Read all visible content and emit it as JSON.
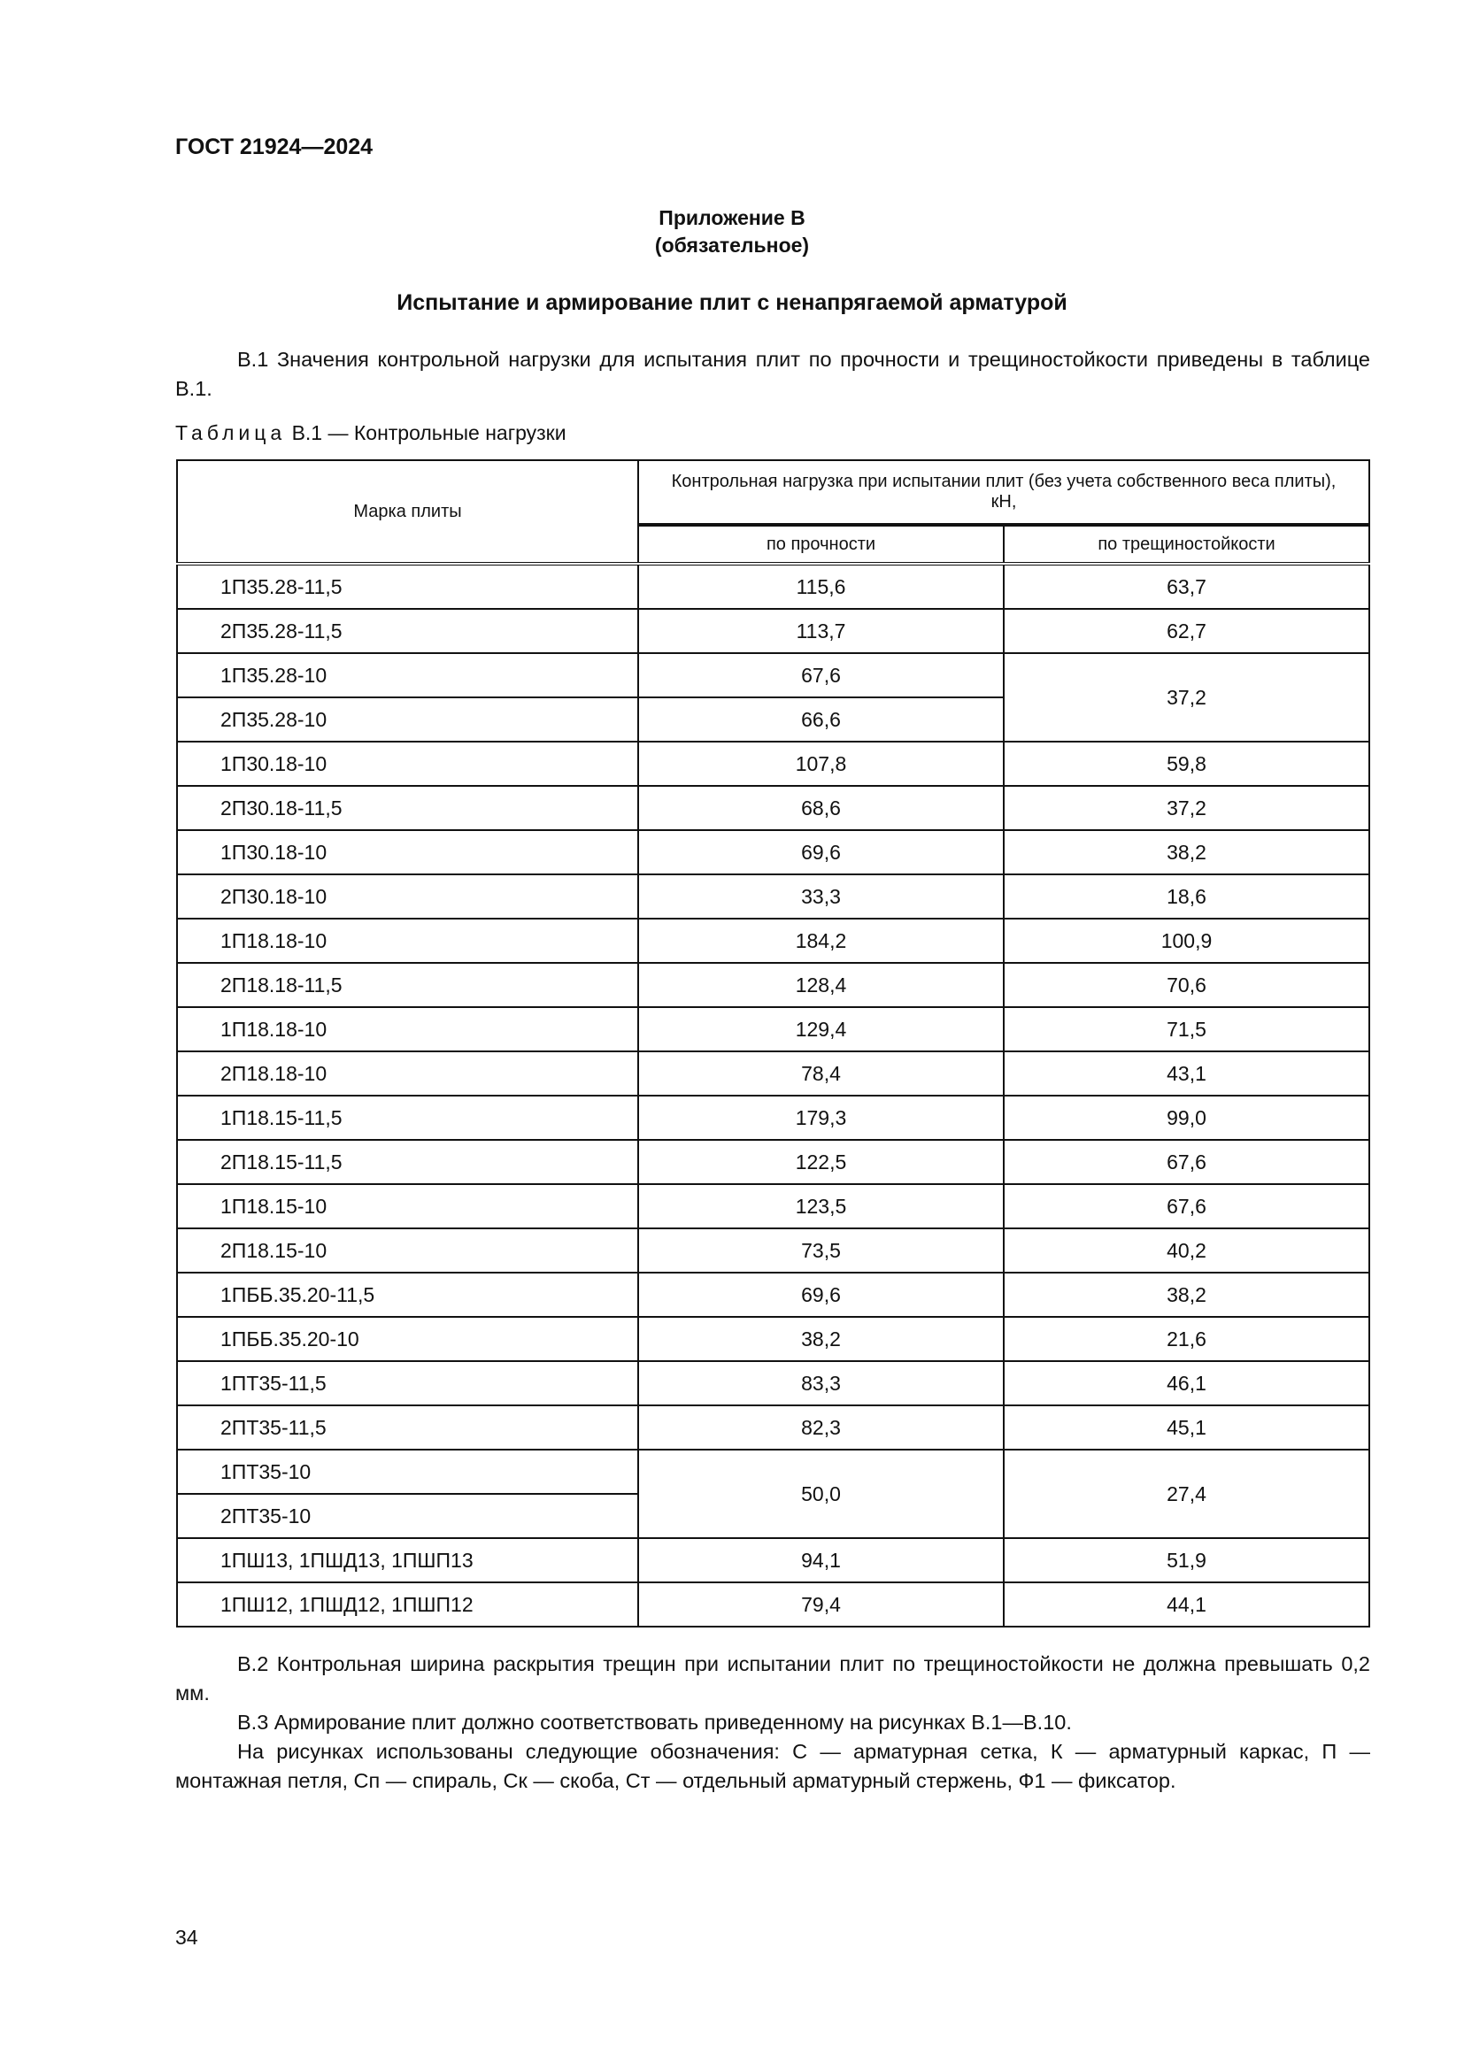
{
  "header": {
    "doc_code": "ГОСТ 21924—2024"
  },
  "appendix": {
    "title": "Приложение В",
    "subtitle": "(обязательное)",
    "section_title": "Испытание и армирование плит с ненапрягаемой арматурой"
  },
  "paragraph_b1": "В.1 Значения контрольной нагрузки для испытания плит по прочности и трещиностойкости приведены в таблице В.1.",
  "table": {
    "caption_prefix": "Таблица",
    "caption_rest": " В.1 — Контрольные нагрузки",
    "headers": {
      "mark": "Марка плиты",
      "load": "Контрольная нагрузка при испытании плит (без учета собственного веса плиты), кН,",
      "strength": "по прочности",
      "crack": "по трещиностойкости"
    },
    "rows": [
      [
        "1П35.28-11,5",
        "115,6",
        "63,7"
      ],
      [
        "2П35.28-11,5",
        "113,7",
        "62,7"
      ],
      [
        "1П35.28-10",
        "67,6",
        "37,2"
      ],
      [
        "2П35.28-10",
        "66,6",
        null
      ],
      [
        "1П30.18-10",
        "107,8",
        "59,8"
      ],
      [
        "2П30.18-11,5",
        "68,6",
        "37,2"
      ],
      [
        "1П30.18-10",
        "69,6",
        "38,2"
      ],
      [
        "2П30.18-10",
        "33,3",
        "18,6"
      ],
      [
        "1П18.18-10",
        "184,2",
        "100,9"
      ],
      [
        "2П18.18-11,5",
        "128,4",
        "70,6"
      ],
      [
        "1П18.18-10",
        "129,4",
        "71,5"
      ],
      [
        "2П18.18-10",
        "78,4",
        "43,1"
      ],
      [
        "1П18.15-11,5",
        "179,3",
        "99,0"
      ],
      [
        "2П18.15-11,5",
        "122,5",
        "67,6"
      ],
      [
        "1П18.15-10",
        "123,5",
        "67,6"
      ],
      [
        "2П18.15-10",
        "73,5",
        "40,2"
      ],
      [
        "1ПББ.35.20-11,5",
        "69,6",
        "38,2"
      ],
      [
        "1ПББ.35.20-10",
        "38,2",
        "21,6"
      ],
      [
        "1ПТ35-11,5",
        "83,3",
        "46,1"
      ],
      [
        "2ПТ35-11,5",
        "82,3",
        "45,1"
      ],
      [
        "1ПТ35-10",
        "50,0",
        "27,4"
      ],
      [
        "2ПТ35-10",
        null,
        null
      ],
      [
        "1ПШ13, 1ПШД13, 1ПШП13",
        "94,1",
        "51,9"
      ],
      [
        "1ПШ12, 1ПШД12, 1ПШП12",
        "79,4",
        "44,1"
      ]
    ]
  },
  "paragraph_b2": "В.2 Контрольная ширина раскрытия трещин при испытании плит по трещиностойкости не должна превышать 0,2 мм.",
  "paragraph_b3": "В.3 Армирование плит должно соответствовать приведенному на рисунках В.1—В.10.",
  "paragraph_notation": "На рисунках использованы следующие обозначения: С — арматурная сетка, К — арматурный каркас, П — монтажная петля, Сп — спираль, Ск — скоба, Ст — отдельный арматурный стержень, Ф1 — фиксатор.",
  "page_number": "34"
}
